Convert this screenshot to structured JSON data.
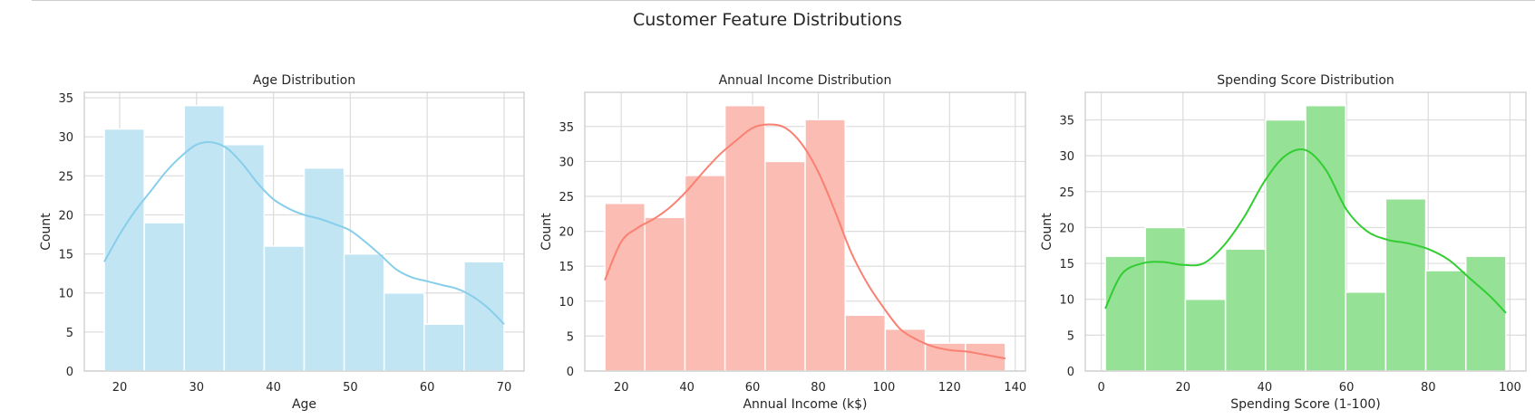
{
  "figure": {
    "title": "Customer Feature Distributions"
  },
  "chart_data": [
    {
      "type": "histogram",
      "title": "Age Distribution",
      "xlabel": "Age",
      "ylabel": "Count",
      "xlim": [
        15.4,
        72.6
      ],
      "ylim": [
        0,
        35.7
      ],
      "xticks": [
        20,
        30,
        40,
        50,
        60,
        70
      ],
      "yticks": [
        0,
        5,
        10,
        15,
        20,
        25,
        30,
        35
      ],
      "bins": [
        {
          "x0": 18.0,
          "x1": 23.2,
          "count": 31
        },
        {
          "x0": 23.2,
          "x1": 28.4,
          "count": 19
        },
        {
          "x0": 28.4,
          "x1": 33.6,
          "count": 34
        },
        {
          "x0": 33.6,
          "x1": 38.8,
          "count": 29
        },
        {
          "x0": 38.8,
          "x1": 44.0,
          "count": 16
        },
        {
          "x0": 44.0,
          "x1": 49.2,
          "count": 26
        },
        {
          "x0": 49.2,
          "x1": 54.4,
          "count": 15
        },
        {
          "x0": 54.4,
          "x1": 59.6,
          "count": 10
        },
        {
          "x0": 59.6,
          "x1": 64.8,
          "count": 6
        },
        {
          "x0": 64.8,
          "x1": 70.0,
          "count": 14
        }
      ],
      "kde": {
        "x": [
          18,
          20,
          22,
          24,
          26,
          28,
          30,
          32,
          34,
          36,
          38,
          40,
          42,
          44,
          46,
          48,
          50,
          52,
          54,
          56,
          58,
          60,
          62,
          64,
          66,
          68,
          70
        ],
        "y": [
          14,
          17.5,
          20.5,
          23,
          25.5,
          27.5,
          29,
          29.3,
          28.5,
          26.5,
          24,
          22,
          20.8,
          20,
          19.5,
          18.8,
          18,
          16.5,
          14.8,
          13,
          12,
          11.5,
          11,
          10.5,
          9.5,
          8,
          6
        ]
      },
      "color": "#87ceeb",
      "fill_color": "#c2e5f4"
    },
    {
      "type": "histogram",
      "title": "Annual Income Distribution",
      "xlabel": "Annual Income (k$)",
      "ylabel": "Count",
      "xlim": [
        8.9,
        143.1
      ],
      "ylim": [
        0,
        39.9
      ],
      "xticks": [
        20,
        40,
        60,
        80,
        100,
        120,
        140
      ],
      "yticks": [
        0,
        5,
        10,
        15,
        20,
        25,
        30,
        35
      ],
      "bins": [
        {
          "x0": 15.0,
          "x1": 27.2,
          "count": 24
        },
        {
          "x0": 27.2,
          "x1": 39.4,
          "count": 22
        },
        {
          "x0": 39.4,
          "x1": 51.6,
          "count": 28
        },
        {
          "x0": 51.6,
          "x1": 63.8,
          "count": 38
        },
        {
          "x0": 63.8,
          "x1": 76.0,
          "count": 30
        },
        {
          "x0": 76.0,
          "x1": 88.2,
          "count": 36
        },
        {
          "x0": 88.2,
          "x1": 100.4,
          "count": 8
        },
        {
          "x0": 100.4,
          "x1": 112.6,
          "count": 6
        },
        {
          "x0": 112.6,
          "x1": 124.8,
          "count": 4
        },
        {
          "x0": 124.8,
          "x1": 137.0,
          "count": 4
        }
      ],
      "kde": {
        "x": [
          15,
          20,
          25,
          30,
          35,
          40,
          45,
          50,
          55,
          60,
          65,
          70,
          75,
          80,
          85,
          90,
          95,
          100,
          105,
          110,
          115,
          120,
          125,
          130,
          137
        ],
        "y": [
          13,
          18.5,
          20.5,
          21.8,
          23.5,
          25.8,
          28.5,
          31,
          33,
          34.8,
          35.3,
          34.8,
          32.5,
          28.5,
          23,
          17,
          12.5,
          9,
          6,
          4.5,
          3.5,
          3,
          2.8,
          2.4,
          1.8
        ]
      },
      "color": "#fa8072",
      "fill_color": "#fbbcb4"
    },
    {
      "type": "histogram",
      "title": "Spending Score Distribution",
      "xlabel": "Spending Score (1-100)",
      "ylabel": "Count",
      "xlim": [
        -3.9,
        103.9
      ],
      "ylim": [
        0,
        38.85
      ],
      "xticks": [
        0,
        20,
        40,
        60,
        80,
        100
      ],
      "yticks": [
        0,
        5,
        10,
        15,
        20,
        25,
        30,
        35
      ],
      "bins": [
        {
          "x0": 1.0,
          "x1": 10.8,
          "count": 16
        },
        {
          "x0": 10.8,
          "x1": 20.6,
          "count": 20
        },
        {
          "x0": 20.6,
          "x1": 30.4,
          "count": 10
        },
        {
          "x0": 30.4,
          "x1": 40.2,
          "count": 17
        },
        {
          "x0": 40.2,
          "x1": 50.0,
          "count": 35
        },
        {
          "x0": 50.0,
          "x1": 59.8,
          "count": 37
        },
        {
          "x0": 59.8,
          "x1": 69.6,
          "count": 11
        },
        {
          "x0": 69.6,
          "x1": 79.4,
          "count": 24
        },
        {
          "x0": 79.4,
          "x1": 89.2,
          "count": 14
        },
        {
          "x0": 89.2,
          "x1": 99.0,
          "count": 16
        }
      ],
      "kde": {
        "x": [
          1,
          5,
          10,
          15,
          20,
          25,
          30,
          35,
          40,
          45,
          50,
          55,
          60,
          65,
          70,
          75,
          80,
          85,
          90,
          95,
          99
        ],
        "y": [
          8.7,
          13.5,
          15,
          15.2,
          14.8,
          15,
          17.5,
          21.5,
          26.5,
          30,
          30.8,
          28,
          22.5,
          19.5,
          18.3,
          17.8,
          17,
          15.5,
          13,
          10.5,
          8.1
        ]
      },
      "color": "#32cd32",
      "fill_color": "#95e195"
    }
  ]
}
